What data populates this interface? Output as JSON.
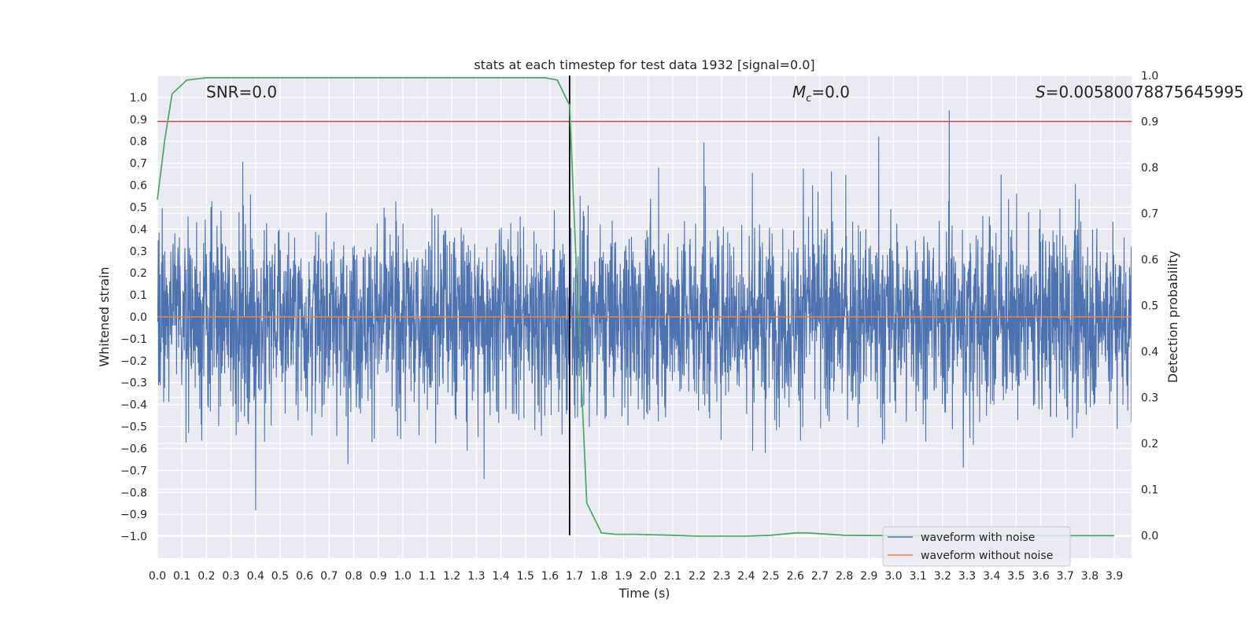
{
  "chart_data": {
    "type": "line",
    "title": "stats at each timestep for test data 1932 [signal=0.0]",
    "xlabel": "Time (s)",
    "ylabel": "Whitened strain",
    "y2label": "Detection probability",
    "xlim": [
      0.0,
      3.97
    ],
    "ylim": [
      -1.1,
      1.1
    ],
    "y2lim": [
      -0.05,
      1.0
    ],
    "xticks": [
      "0.0",
      "0.1",
      "0.2",
      "0.3",
      "0.4",
      "0.5",
      "0.6",
      "0.7",
      "0.8",
      "0.9",
      "1.0",
      "1.1",
      "1.2",
      "1.3",
      "1.4",
      "1.5",
      "1.6",
      "1.7",
      "1.8",
      "1.9",
      "2.0",
      "2.1",
      "2.2",
      "2.3",
      "2.4",
      "2.5",
      "2.6",
      "2.7",
      "2.8",
      "2.9",
      "3.0",
      "3.1",
      "3.2",
      "3.3",
      "3.4",
      "3.5",
      "3.6",
      "3.7",
      "3.8",
      "3.9"
    ],
    "yticks": [
      "1.0",
      "0.9",
      "0.8",
      "0.7",
      "0.6",
      "0.5",
      "0.4",
      "0.3",
      "0.2",
      "0.1",
      "0.0",
      "−0.1",
      "−0.2",
      "−0.3",
      "−0.4",
      "−0.5",
      "−0.6",
      "−0.7",
      "−0.8",
      "−0.9",
      "−1.0"
    ],
    "y2ticks": [
      "1.0",
      "0.9",
      "0.8",
      "0.7",
      "0.6",
      "0.5",
      "0.4",
      "0.3",
      "0.2",
      "0.1",
      "0.0"
    ],
    "threshold": 0.9,
    "marker_time": 1.68,
    "annotations": {
      "snr": "SNR=0.0",
      "mc_symbol": "M",
      "mc_sub": "c",
      "mc_value": "=0.0",
      "s_symbol": "S",
      "s_value": "=0.00580078875645995"
    },
    "series": [
      {
        "name": "waveform with noise",
        "color": "#4c72b0",
        "amplitude_peak": 0.97
      },
      {
        "name": "waveform without noise",
        "color": "#dd8452",
        "value": 0.0
      },
      {
        "name": "detection probability",
        "color": "#55a868",
        "x": [
          0.0,
          0.03,
          0.06,
          0.12,
          0.2,
          0.5,
          1.0,
          1.5,
          1.58,
          1.63,
          1.68,
          1.71,
          1.75,
          1.81,
          1.87,
          1.95,
          2.1,
          2.2,
          2.4,
          2.5,
          2.6,
          2.65,
          2.8,
          3.0,
          3.5,
          3.9
        ],
        "y": [
          0.73,
          0.86,
          0.96,
          0.99,
          0.995,
          0.995,
          0.995,
          0.995,
          0.995,
          0.99,
          0.935,
          0.55,
          0.07,
          0.005,
          0.002,
          0.002,
          0.0,
          -0.002,
          -0.002,
          0.0,
          0.005,
          0.005,
          0.0,
          -0.001,
          -0.001,
          -0.001
        ]
      }
    ],
    "legend_location": "lower-right"
  }
}
